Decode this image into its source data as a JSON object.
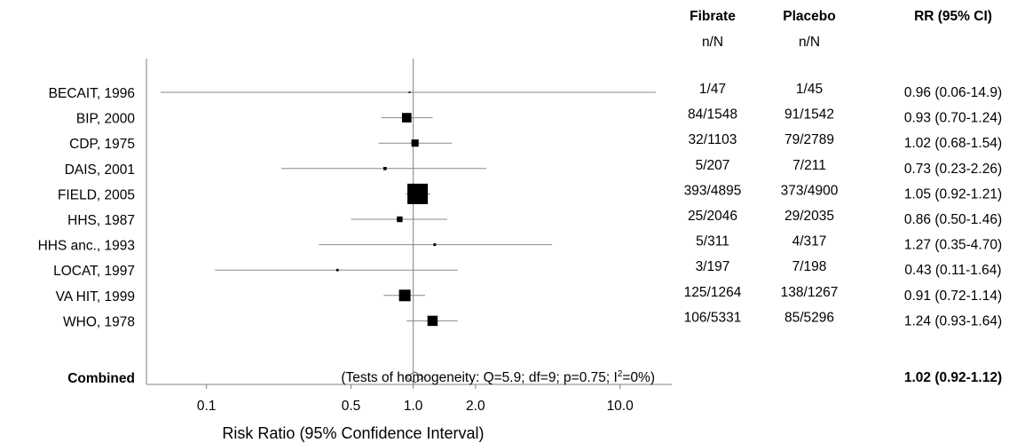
{
  "chart_data": {
    "type": "forest",
    "xlabel": "Risk Ratio  (95% Confidence Interval)",
    "xscale": "log",
    "xlim": [
      0.06,
      15.5
    ],
    "xticks": [
      {
        "value": 0.1,
        "label": "0.1"
      },
      {
        "value": 0.5,
        "label": "0.5"
      },
      {
        "value": 1.0,
        "label": "1.0"
      },
      {
        "value": 2.0,
        "label": "2.0"
      },
      {
        "value": 10.0,
        "label": "10.0"
      }
    ],
    "reference_line": 1.0,
    "headers": {
      "fibrate": "Fibrate",
      "placebo": "Placebo",
      "rr": "RR (95% CI)",
      "fibrate_sub": "n/N",
      "placebo_sub": "n/N"
    },
    "studies": [
      {
        "label": "BECAIT, 1996",
        "fibrate": "1/47",
        "placebo": "1/45",
        "rr_text": "0.96 (0.06-14.9)",
        "rr": 0.96,
        "lo": 0.06,
        "hi": 14.9,
        "weight": 0.1
      },
      {
        "label": "BIP, 2000",
        "fibrate": "84/1548",
        "placebo": "91/1542",
        "rr_text": "0.93 (0.70-1.24)",
        "rr": 0.93,
        "lo": 0.7,
        "hi": 1.24,
        "weight": 7.8
      },
      {
        "label": "CDP, 1975",
        "fibrate": "32/1103",
        "placebo": "79/2789",
        "rr_text": "1.02 (0.68-1.54)",
        "rr": 1.02,
        "lo": 0.68,
        "hi": 1.54,
        "weight": 4.5
      },
      {
        "label": "DAIS, 2001",
        "fibrate": "5/207",
        "placebo": "7/211",
        "rr_text": "0.73 (0.23-2.26)",
        "rr": 0.73,
        "lo": 0.23,
        "hi": 2.26,
        "weight": 0.9
      },
      {
        "label": "FIELD, 2005",
        "fibrate": "393/4895",
        "placebo": "373/4900",
        "rr_text": "1.05 (0.92-1.21)",
        "rr": 1.05,
        "lo": 0.92,
        "hi": 1.21,
        "weight": 36.0
      },
      {
        "label": "HHS, 1987",
        "fibrate": "25/2046",
        "placebo": "29/2035",
        "rr_text": "0.86 (0.50-1.46)",
        "rr": 0.86,
        "lo": 0.5,
        "hi": 1.46,
        "weight": 2.8
      },
      {
        "label": "HHS anc., 1993",
        "fibrate": "5/311",
        "placebo": "4/317",
        "rr_text": "1.27 (0.35-4.70)",
        "rr": 1.27,
        "lo": 0.35,
        "hi": 4.7,
        "weight": 0.6
      },
      {
        "label": "LOCAT, 1997",
        "fibrate": "3/197",
        "placebo": "7/198",
        "rr_text": "0.43 (0.11-1.64)",
        "rr": 0.43,
        "lo": 0.11,
        "hi": 1.64,
        "weight": 0.5
      },
      {
        "label": "VA HIT, 1999",
        "fibrate": "125/1264",
        "placebo": "138/1267",
        "rr_text": "0.91 (0.72-1.14)",
        "rr": 0.91,
        "lo": 0.72,
        "hi": 1.14,
        "weight": 11.5
      },
      {
        "label": "WHO, 1978",
        "fibrate": "106/5331",
        "placebo": "85/5296",
        "rr_text": "1.24 (0.93-1.64)",
        "rr": 1.24,
        "lo": 0.93,
        "hi": 1.64,
        "weight": 9.0
      }
    ],
    "combined": {
      "label": "Combined",
      "heterogeneity": "(Tests of homogeneity: Q=5.9; df=9; p=0.75; I",
      "heterogeneity_sup": "2",
      "heterogeneity_end": "=0%)",
      "rr_text": "1.02 (0.92-1.12)",
      "rr": 1.02,
      "lo": 0.92,
      "hi": 1.12
    }
  }
}
